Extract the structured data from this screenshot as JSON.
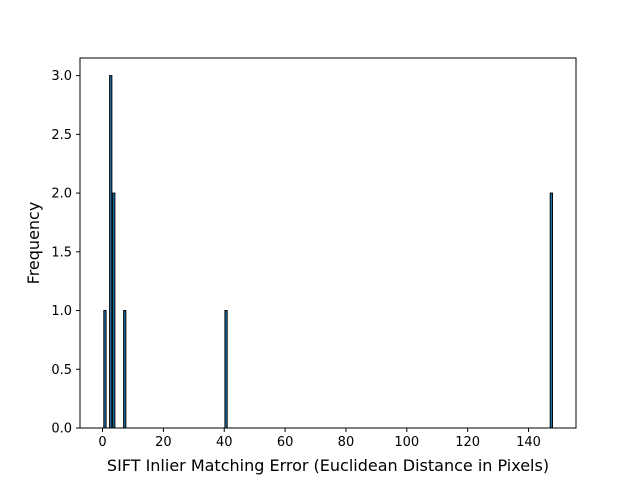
{
  "chart_data": {
    "type": "bar",
    "title": "",
    "xlabel": "SIFT Inlier Matching Error (Euclidean Distance in Pixels)",
    "ylabel": "Frequency",
    "xlim": [
      -7.4,
      155.6
    ],
    "ylim": [
      0,
      3.15
    ],
    "bin_width": 0.74,
    "bars": [
      {
        "x": 0.8,
        "value": 1
      },
      {
        "x": 2.7,
        "value": 3
      },
      {
        "x": 3.7,
        "value": 2
      },
      {
        "x": 7.3,
        "value": 1
      },
      {
        "x": 40.6,
        "value": 1
      },
      {
        "x": 147.5,
        "value": 2
      }
    ],
    "xticks": [
      0,
      20,
      40,
      60,
      80,
      100,
      120,
      140
    ],
    "xtick_labels": [
      "0",
      "20",
      "40",
      "60",
      "80",
      "100",
      "120",
      "140"
    ],
    "yticks": [
      0.0,
      0.5,
      1.0,
      1.5,
      2.0,
      2.5,
      3.0
    ],
    "ytick_labels": [
      "0.0",
      "0.5",
      "1.0",
      "1.5",
      "2.0",
      "2.5",
      "3.0"
    ],
    "grid": false,
    "colors": {
      "bar_fill": "#1f77b4",
      "bar_edge": "#000000",
      "axes": "#000000"
    }
  }
}
